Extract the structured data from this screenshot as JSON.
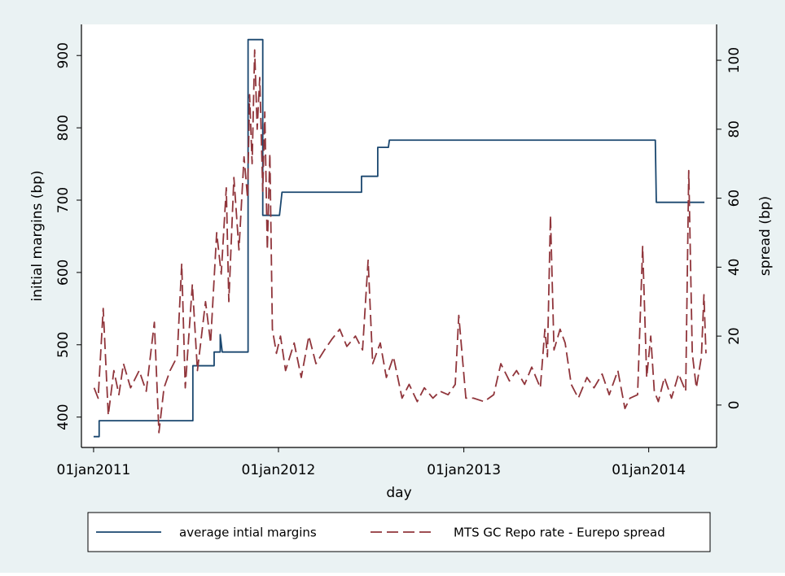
{
  "chart_data": {
    "type": "line",
    "xlabel": "day",
    "ylabel": "initial margins (bp)",
    "y2label": "spread (bp)",
    "xlim": [
      "2010-12-08",
      "2014-05-15"
    ],
    "xticks": [
      {
        "value": "2011-01-01",
        "label": "01jan2011"
      },
      {
        "value": "2012-01-01",
        "label": "01jan2012"
      },
      {
        "value": "2013-01-01",
        "label": "01jan2013"
      },
      {
        "value": "2014-01-01",
        "label": "01jan2014"
      }
    ],
    "ylim": [
      358,
      943
    ],
    "yticks": [
      400,
      500,
      600,
      700,
      800,
      900
    ],
    "y2lim": [
      -12.3,
      110.4
    ],
    "y2ticks": [
      0,
      20,
      40,
      60,
      80,
      100
    ],
    "legend": "bottom",
    "series": [
      {
        "name": "average intial margins",
        "color": "#1a476f",
        "style": "solid",
        "x": [
          "2011-01-01",
          "2011-01-12",
          "2011-01-12",
          "2011-07-16",
          "2011-07-16",
          "2011-08-27",
          "2011-08-27",
          "2011-09-08",
          "2011-09-08",
          "2011-09-12",
          "2011-11-02",
          "2011-11-02",
          "2011-12-01",
          "2011-12-01",
          "2012-01-03",
          "2012-01-08",
          "2012-06-13",
          "2012-06-13",
          "2012-07-15",
          "2012-07-15",
          "2012-08-05",
          "2012-08-07",
          "2014-01-14",
          "2014-01-16",
          "2014-04-21"
        ],
        "values": [
          373,
          373,
          395,
          395,
          471,
          471,
          490,
          490,
          514,
          490,
          490,
          922,
          922,
          679,
          679,
          711,
          711,
          733,
          733,
          773,
          773,
          783,
          783,
          697,
          697
        ]
      },
      {
        "name": "MTS GC Repo rate - Eurepo spread",
        "color": "#90353b",
        "style": "dashed",
        "axis": "y2",
        "x": [
          "2011-01-02",
          "2011-01-10",
          "2011-01-20",
          "2011-01-30",
          "2011-02-10",
          "2011-02-20",
          "2011-03-01",
          "2011-03-15",
          "2011-04-01",
          "2011-04-15",
          "2011-05-01",
          "2011-05-10",
          "2011-05-20",
          "2011-06-01",
          "2011-06-15",
          "2011-06-24",
          "2011-07-01",
          "2011-07-15",
          "2011-07-25",
          "2011-08-10",
          "2011-08-20",
          "2011-09-01",
          "2011-09-10",
          "2011-09-20",
          "2011-09-25",
          "2011-10-05",
          "2011-10-15",
          "2011-10-25",
          "2011-11-01",
          "2011-11-05",
          "2011-11-10",
          "2011-11-15",
          "2011-11-20",
          "2011-11-25",
          "2011-12-01",
          "2011-12-05",
          "2011-12-10",
          "2011-12-15",
          "2011-12-20",
          "2011-12-28",
          "2012-01-05",
          "2012-01-15",
          "2012-02-01",
          "2012-02-15",
          "2012-03-01",
          "2012-03-15",
          "2012-04-01",
          "2012-04-15",
          "2012-05-01",
          "2012-05-15",
          "2012-06-01",
          "2012-06-15",
          "2012-06-26",
          "2012-07-05",
          "2012-07-20",
          "2012-08-01",
          "2012-08-15",
          "2012-09-01",
          "2012-09-15",
          "2012-10-01",
          "2012-10-15",
          "2012-11-01",
          "2012-11-15",
          "2012-12-01",
          "2012-12-15",
          "2012-12-22",
          "2013-01-05",
          "2013-01-20",
          "2013-02-10",
          "2013-03-01",
          "2013-03-15",
          "2013-04-01",
          "2013-04-15",
          "2013-05-01",
          "2013-05-15",
          "2013-06-01",
          "2013-06-10",
          "2013-06-15",
          "2013-06-21",
          "2013-06-28",
          "2013-07-10",
          "2013-07-20",
          "2013-08-01",
          "2013-08-15",
          "2013-09-01",
          "2013-09-15",
          "2013-10-01",
          "2013-10-15",
          "2013-11-01",
          "2013-11-15",
          "2013-11-25",
          "2013-12-10",
          "2013-12-20",
          "2013-12-28",
          "2014-01-05",
          "2014-01-12",
          "2014-01-20",
          "2014-02-01",
          "2014-02-15",
          "2014-03-01",
          "2014-03-15",
          "2014-03-21",
          "2014-03-28",
          "2014-04-05",
          "2014-04-15",
          "2014-04-20",
          "2014-04-24"
        ],
        "values": [
          5,
          2,
          28,
          -3,
          10,
          3,
          12,
          5,
          10,
          4,
          24,
          -8,
          5,
          10,
          14,
          41,
          5,
          35,
          10,
          30,
          18,
          50,
          38,
          63,
          30,
          66,
          45,
          72,
          60,
          90,
          70,
          103,
          80,
          95,
          62,
          85,
          45,
          73,
          22,
          15,
          20,
          10,
          18,
          8,
          20,
          12,
          16,
          19,
          22,
          17,
          20,
          16,
          42,
          12,
          18,
          8,
          14,
          2,
          6,
          1,
          5,
          2,
          4,
          3,
          6,
          26,
          2,
          2,
          1,
          3,
          12,
          7,
          10,
          6,
          11,
          5,
          22,
          14,
          55,
          16,
          22,
          18,
          6,
          2,
          8,
          5,
          9,
          3,
          10,
          -1,
          2,
          3,
          46,
          8,
          20,
          4,
          1,
          8,
          2,
          9,
          4,
          68,
          15,
          5,
          14,
          32,
          15
        ]
      }
    ]
  }
}
